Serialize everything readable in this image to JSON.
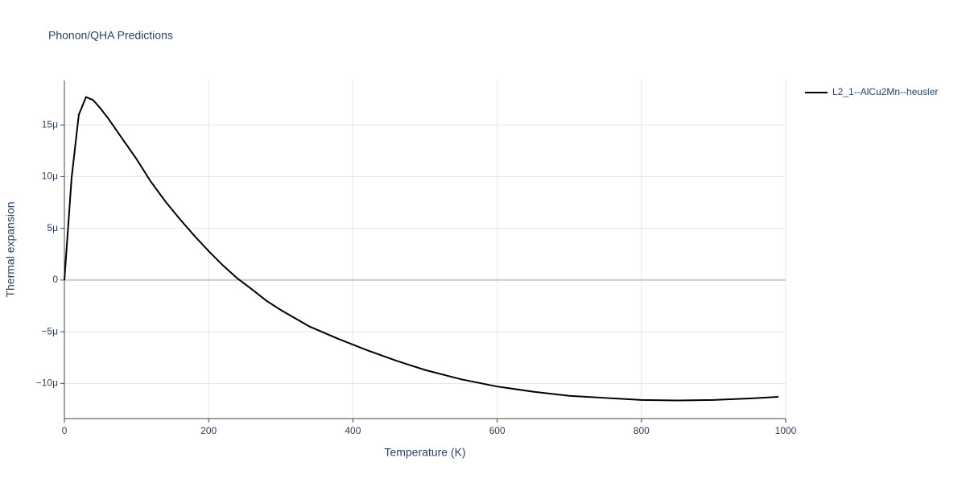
{
  "chart_data": {
    "type": "line",
    "title": "Phonon/QHA Predictions",
    "x_label": "Temperature (K)",
    "y_label": "Thermal expansion",
    "x": [
      0,
      10,
      20,
      30,
      40,
      50,
      60,
      80,
      100,
      120,
      140,
      160,
      180,
      200,
      220,
      240,
      260,
      280,
      300,
      340,
      380,
      420,
      460,
      500,
      550,
      600,
      650,
      700,
      750,
      800,
      850,
      900,
      950,
      990
    ],
    "series": [
      {
        "name": "L2_1--AlCu2Mn--heusler",
        "color": "#000000",
        "values": [
          0,
          9.9e-06,
          1.6e-05,
          1.77e-05,
          1.74e-05,
          1.66e-05,
          1.57e-05,
          1.37e-05,
          1.17e-05,
          9.5e-06,
          7.6e-06,
          5.9e-06,
          4.3e-06,
          2.8e-06,
          1.4e-06,
          1.5e-07,
          -9e-07,
          -2e-06,
          -2.9e-06,
          -4.5e-06,
          -5.7e-06,
          -6.8e-06,
          -7.8e-06,
          -8.7e-06,
          -9.6e-06,
          -1.03e-05,
          -1.08e-05,
          -1.12e-05,
          -1.14e-05,
          -1.16e-05,
          -1.165e-05,
          -1.16e-05,
          -1.145e-05,
          -1.13e-05
        ]
      }
    ],
    "xlim": [
      0,
      1000
    ],
    "xticks": [
      0,
      200,
      400,
      600,
      800,
      1000
    ],
    "ylim": [
      -1.34e-05,
      1.93e-05
    ],
    "yticks": [
      {
        "value": -1e-05,
        "label": "−10μ"
      },
      {
        "value": -5e-06,
        "label": "−5μ"
      },
      0,
      {
        "value": 5e-06,
        "label": "5μ"
      },
      {
        "value": 1e-05,
        "label": "10μ"
      },
      {
        "value": 1.5e-05,
        "label": "15μ"
      }
    ],
    "grid": true,
    "legend": "top-right"
  }
}
